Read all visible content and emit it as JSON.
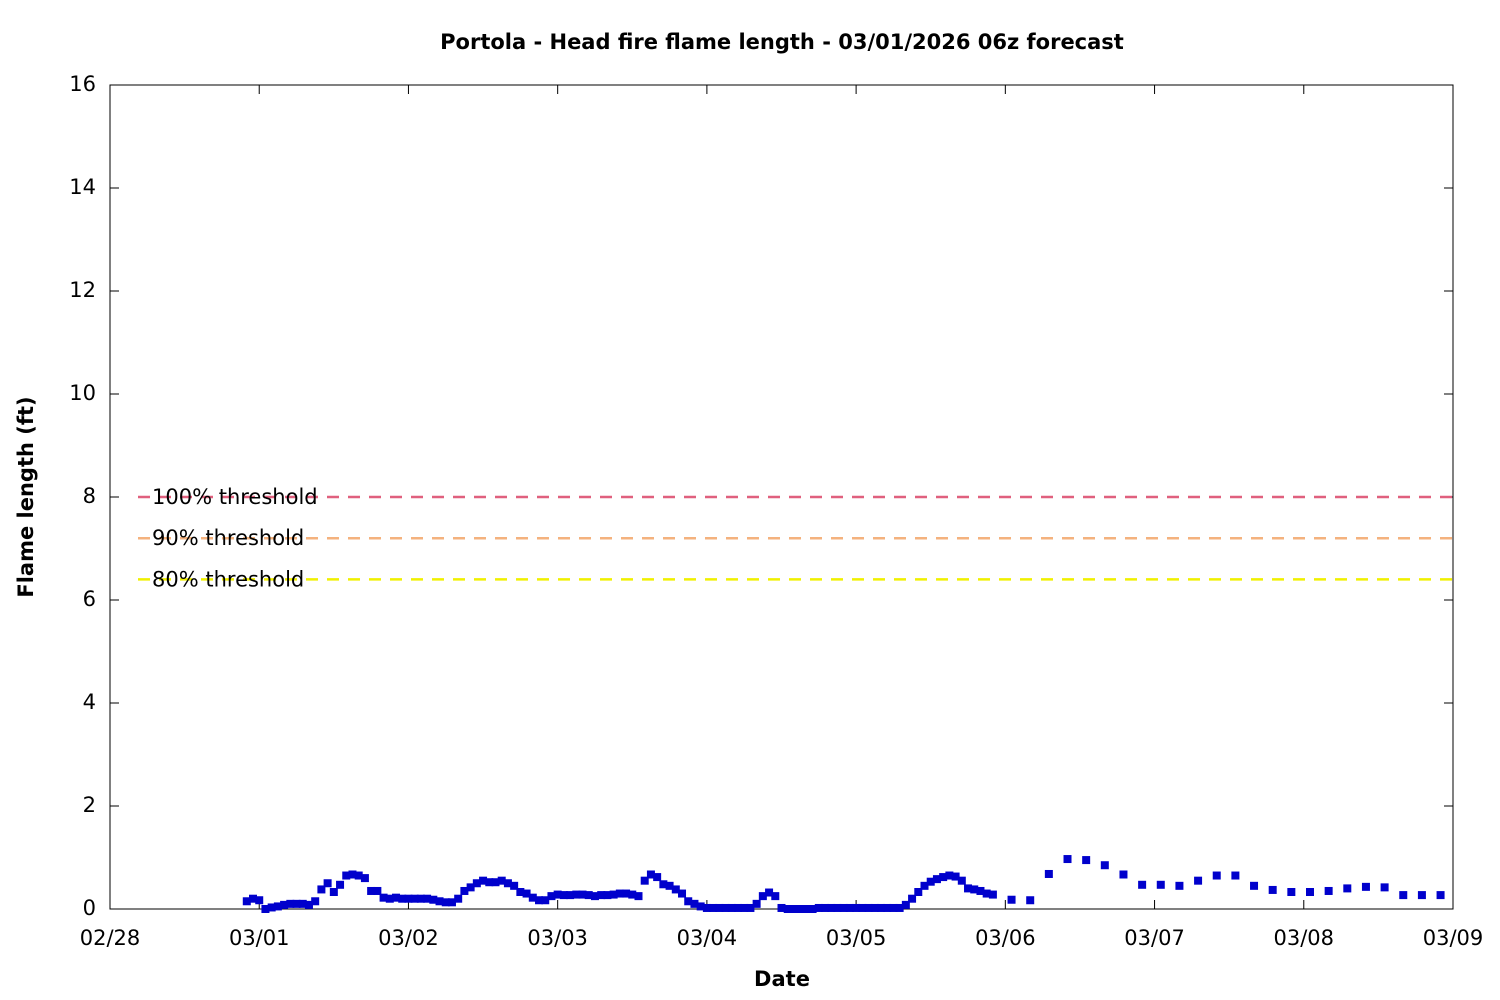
{
  "chart_data": {
    "type": "scatter",
    "title": "Portola - Head fire flame length - 03/01/2026 06z forecast",
    "x_label": "Date",
    "y_label": "Flame length (ft)",
    "x": [
      22,
      23,
      24,
      25,
      26,
      27,
      28,
      29,
      30,
      31,
      32,
      33,
      34,
      35,
      36,
      37,
      38,
      39,
      40,
      41,
      42,
      43,
      44,
      45,
      46,
      47,
      48,
      49,
      50,
      51,
      52,
      53,
      54,
      55,
      56,
      57,
      58,
      59,
      60,
      61,
      62,
      63,
      64,
      65,
      66,
      67,
      68,
      69,
      70,
      71,
      72,
      73,
      74,
      75,
      76,
      77,
      78,
      79,
      80,
      81,
      82,
      83,
      84,
      85,
      86,
      87,
      88,
      89,
      90,
      91,
      92,
      93,
      94,
      95,
      96,
      97,
      98,
      99,
      100,
      101,
      102,
      103,
      104,
      105,
      106,
      107,
      108,
      109,
      110,
      111,
      112,
      113,
      114,
      115,
      116,
      117,
      118,
      119,
      120,
      121,
      122,
      123,
      124,
      125,
      126,
      127,
      128,
      129,
      130,
      131,
      132,
      133,
      134,
      135,
      136,
      137,
      138,
      139,
      140,
      141,
      142,
      145,
      148,
      151,
      154,
      157,
      160,
      163,
      166,
      169,
      172,
      175,
      178,
      181,
      184,
      187,
      190,
      193,
      196,
      199,
      202,
      205,
      208,
      211,
      214
    ],
    "values": [
      0.15,
      0.2,
      0.17,
      0,
      0.03,
      0.05,
      0.08,
      0.1,
      0.1,
      0.1,
      0.08,
      0.15,
      0.38,
      0.5,
      0.33,
      0.47,
      0.65,
      0.67,
      0.65,
      0.6,
      0.35,
      0.35,
      0.22,
      0.2,
      0.22,
      0.2,
      0.2,
      0.2,
      0.2,
      0.2,
      0.18,
      0.15,
      0.13,
      0.13,
      0.2,
      0.35,
      0.42,
      0.5,
      0.55,
      0.52,
      0.52,
      0.55,
      0.5,
      0.45,
      0.33,
      0.3,
      0.22,
      0.17,
      0.17,
      0.25,
      0.28,
      0.27,
      0.27,
      0.28,
      0.28,
      0.27,
      0.25,
      0.27,
      0.27,
      0.28,
      0.3,
      0.3,
      0.28,
      0.25,
      0.55,
      0.67,
      0.62,
      0.48,
      0.45,
      0.38,
      0.3,
      0.15,
      0.1,
      0.05,
      0.02,
      0.02,
      0.02,
      0.02,
      0.02,
      0.02,
      0.02,
      0.02,
      0.1,
      0.25,
      0.32,
      0.25,
      0.02,
      0,
      0,
      0,
      0,
      0,
      0.02,
      0.02,
      0.02,
      0.02,
      0.02,
      0.02,
      0.02,
      0.02,
      0.02,
      0.02,
      0.02,
      0.02,
      0.02,
      0.02,
      0.08,
      0.2,
      0.33,
      0.45,
      0.53,
      0.58,
      0.62,
      0.65,
      0.63,
      0.55,
      0.4,
      0.38,
      0.35,
      0.3,
      0.28,
      0.18,
      0.17,
      0.68,
      0.97,
      0.95,
      0.85,
      0.67,
      0.47,
      0.47,
      0.45,
      0.55,
      0.65,
      0.65,
      0.45,
      0.37,
      0.33,
      0.33,
      0.35,
      0.4,
      0.43,
      0.42,
      0.27,
      0.27,
      0.27
    ],
    "color": "#0000cc",
    "thresholds": [
      {
        "name": "100% threshold",
        "value": 8,
        "color": "#e0607e"
      },
      {
        "name": "90% threshold",
        "value": 7.2,
        "color": "#f4b27e"
      },
      {
        "name": "80% threshold",
        "value": 6.4,
        "color": "#f0f000"
      }
    ],
    "xlim": [
      0,
      216
    ],
    "xticks": [
      {
        "value": 0,
        "label": "02/28"
      },
      {
        "value": 24,
        "label": "03/01"
      },
      {
        "value": 48,
        "label": "03/02"
      },
      {
        "value": 72,
        "label": "03/03"
      },
      {
        "value": 96,
        "label": "03/04"
      },
      {
        "value": 120,
        "label": "03/05"
      },
      {
        "value": 144,
        "label": "03/06"
      },
      {
        "value": 168,
        "label": "03/07"
      },
      {
        "value": 192,
        "label": "03/08"
      },
      {
        "value": 216,
        "label": "03/09"
      }
    ],
    "ylim": [
      0,
      16
    ],
    "yticks": [
      0,
      2,
      4,
      6,
      8,
      10,
      12,
      14,
      16
    ]
  }
}
